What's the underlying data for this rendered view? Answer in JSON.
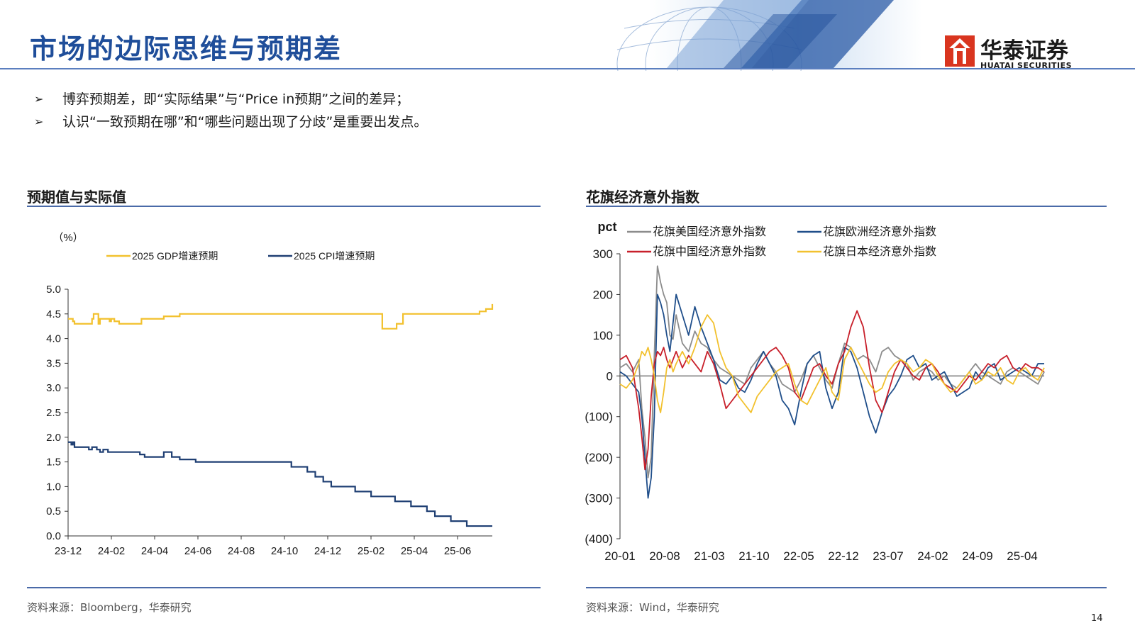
{
  "slide": {
    "title": "市场的边际思维与预期差",
    "logo_text": "华泰证券",
    "logo_sub": "HUATAI SECURITIES",
    "page_number": "14",
    "brand_color": "#1f4e9a",
    "logo_color": "#d9351f"
  },
  "bullets": [
    "博弈预期差，即“实际结果”与“Price in预期”之间的差异；",
    "认识“一致预期在哪”和“哪些问题出现了分歧”是重要出发点。"
  ],
  "left_panel": {
    "title": "预期值与实际值",
    "source": "资料来源：Bloomberg，华泰研究"
  },
  "right_panel": {
    "title": "花旗经济意外指数",
    "source": "资料来源：Wind，华泰研究"
  },
  "chart_data": [
    {
      "type": "line",
      "ylabel": "（%）",
      "ylim": [
        0,
        5
      ],
      "yticks": [
        "0.0",
        "0.5",
        "1.0",
        "1.5",
        "2.0",
        "2.5",
        "3.0",
        "3.5",
        "4.0",
        "4.5",
        "5.0"
      ],
      "x_ticks": [
        "23-12",
        "24-02",
        "24-04",
        "24-06",
        "24-08",
        "24-10",
        "24-12",
        "25-02",
        "25-04",
        "25-06"
      ],
      "series": [
        {
          "name": "2025 GDP增速预期",
          "color": "#f2c12e",
          "x": [
            0,
            2,
            3,
            4,
            6,
            8,
            10,
            14,
            15,
            16,
            19,
            20,
            22,
            25,
            26,
            27,
            29,
            31,
            32,
            34,
            36,
            40,
            42,
            44,
            46,
            48,
            50,
            60,
            70,
            80,
            90,
            100,
            110,
            120,
            130,
            140,
            150,
            160,
            170,
            180,
            190,
            196,
            197,
            201,
            203,
            204,
            206,
            210,
            215,
            225,
            230,
            235,
            240,
            245,
            250,
            255,
            258,
            262,
            264,
            266
          ],
          "values": [
            4.4,
            4.4,
            4.35,
            4.3,
            4.3,
            4.3,
            4.3,
            4.3,
            4.4,
            4.5,
            4.3,
            4.4,
            4.4,
            4.4,
            4.35,
            4.4,
            4.35,
            4.35,
            4.3,
            4.3,
            4.3,
            4.3,
            4.3,
            4.3,
            4.4,
            4.4,
            4.4,
            4.45,
            4.5,
            4.5,
            4.5,
            4.5,
            4.5,
            4.5,
            4.5,
            4.5,
            4.5,
            4.5,
            4.5,
            4.5,
            4.5,
            4.5,
            4.2,
            4.2,
            4.2,
            4.2,
            4.3,
            4.5,
            4.5,
            4.5,
            4.5,
            4.5,
            4.5,
            4.5,
            4.5,
            4.5,
            4.55,
            4.6,
            4.6,
            4.7
          ]
        },
        {
          "name": "2025 CPI增速预期",
          "color": "#1f3f73",
          "x": [
            0,
            1,
            2,
            3,
            4,
            8,
            10,
            13,
            15,
            18,
            20,
            22,
            25,
            28,
            30,
            33,
            35,
            38,
            40,
            42,
            45,
            48,
            50,
            52,
            55,
            60,
            65,
            70,
            75,
            80,
            85,
            90,
            95,
            100,
            105,
            110,
            115,
            120,
            125,
            130,
            135,
            140,
            145,
            150,
            155,
            160,
            165,
            170,
            175,
            180,
            185,
            190,
            195,
            200,
            205,
            210,
            215,
            220,
            225,
            230,
            235,
            240,
            245,
            250,
            255,
            260,
            266
          ],
          "values": [
            1.9,
            1.9,
            1.85,
            1.9,
            1.8,
            1.8,
            1.8,
            1.75,
            1.8,
            1.75,
            1.7,
            1.75,
            1.7,
            1.7,
            1.7,
            1.7,
            1.7,
            1.7,
            1.7,
            1.7,
            1.65,
            1.6,
            1.6,
            1.6,
            1.6,
            1.7,
            1.6,
            1.55,
            1.55,
            1.5,
            1.5,
            1.5,
            1.5,
            1.5,
            1.5,
            1.5,
            1.5,
            1.5,
            1.5,
            1.5,
            1.5,
            1.4,
            1.4,
            1.3,
            1.2,
            1.1,
            1.0,
            1.0,
            1.0,
            0.9,
            0.9,
            0.8,
            0.8,
            0.8,
            0.7,
            0.7,
            0.6,
            0.6,
            0.5,
            0.4,
            0.4,
            0.3,
            0.3,
            0.2,
            0.2,
            0.2,
            0.2
          ]
        }
      ]
    },
    {
      "type": "line",
      "ylabel": "pct",
      "ylim": [
        -400,
        300
      ],
      "yticks": [
        "(400)",
        "(300)",
        "(200)",
        "(100)",
        "0",
        "100",
        "200",
        "300"
      ],
      "x_ticks": [
        "20-01",
        "20-08",
        "21-03",
        "21-10",
        "22-05",
        "22-12",
        "23-07",
        "24-02",
        "24-09",
        "25-04"
      ],
      "series": [
        {
          "name": "花旗美国经济意外指数",
          "color": "#8c8c8c",
          "x": [
            0,
            1,
            2,
            3,
            3.5,
            4,
            4.5,
            5,
            5.5,
            6,
            6.5,
            7,
            7.5,
            8,
            8.5,
            9,
            10,
            11,
            12,
            13,
            14,
            15,
            16,
            17,
            18,
            19,
            20,
            21,
            22,
            23,
            24,
            25,
            26,
            27,
            28,
            29,
            30,
            31,
            32,
            33,
            34,
            35,
            36,
            37,
            38,
            39,
            40,
            41,
            42,
            43,
            44,
            45,
            46,
            47,
            48,
            49,
            50,
            51,
            52,
            53,
            54,
            55,
            56,
            57,
            58,
            59,
            60,
            61,
            62,
            63,
            64,
            65,
            66,
            67,
            68
          ],
          "values": [
            20,
            30,
            10,
            40,
            -80,
            -150,
            -250,
            -200,
            50,
            270,
            230,
            200,
            180,
            100,
            90,
            150,
            80,
            60,
            110,
            80,
            70,
            40,
            20,
            10,
            0,
            -10,
            -20,
            20,
            40,
            60,
            30,
            10,
            -20,
            -30,
            -40,
            -10,
            30,
            50,
            20,
            -10,
            -30,
            30,
            80,
            70,
            40,
            50,
            40,
            10,
            60,
            70,
            50,
            40,
            30,
            -10,
            10,
            20,
            10,
            -10,
            0,
            -20,
            -30,
            -10,
            10,
            30,
            10,
            0,
            -10,
            -20,
            10,
            20,
            10,
            0,
            -10,
            -20,
            10
          ]
        },
        {
          "name": "花旗欧洲经济意外指数",
          "color": "#1f4e8a",
          "x": [
            0,
            1,
            2,
            3,
            3.5,
            4,
            4.5,
            5,
            5.5,
            6,
            6.5,
            7,
            7.5,
            8,
            8.5,
            9,
            10,
            11,
            12,
            13,
            14,
            15,
            16,
            17,
            18,
            19,
            20,
            21,
            22,
            23,
            24,
            25,
            26,
            27,
            28,
            29,
            30,
            31,
            32,
            33,
            34,
            35,
            36,
            37,
            38,
            39,
            40,
            41,
            42,
            43,
            44,
            45,
            46,
            47,
            48,
            49,
            50,
            51,
            52,
            53,
            54,
            55,
            56,
            57,
            58,
            59,
            60,
            61,
            62,
            63,
            64,
            65,
            66,
            67,
            68
          ],
          "values": [
            10,
            0,
            -20,
            -40,
            -100,
            -200,
            -300,
            -250,
            -100,
            200,
            180,
            150,
            100,
            60,
            130,
            200,
            150,
            100,
            170,
            120,
            80,
            40,
            -10,
            -20,
            0,
            -30,
            -40,
            -10,
            30,
            60,
            30,
            0,
            -60,
            -80,
            -120,
            -40,
            30,
            50,
            60,
            -30,
            -80,
            -40,
            70,
            60,
            20,
            -40,
            -100,
            -140,
            -90,
            -50,
            -30,
            0,
            40,
            50,
            20,
            30,
            -10,
            0,
            10,
            -20,
            -50,
            -40,
            -30,
            10,
            -10,
            20,
            30,
            -10,
            0,
            10,
            20,
            10,
            0,
            30,
            30
          ]
        },
        {
          "name": "花旗中国经济意外指数",
          "color": "#c8202b",
          "x": [
            0,
            1,
            2,
            3,
            3.5,
            4,
            4.5,
            5,
            5.5,
            6,
            6.5,
            7,
            7.5,
            8,
            8.5,
            9,
            10,
            11,
            12,
            13,
            14,
            15,
            16,
            17,
            18,
            19,
            20,
            21,
            22,
            23,
            24,
            25,
            26,
            27,
            28,
            29,
            30,
            31,
            32,
            33,
            34,
            35,
            36,
            37,
            38,
            39,
            40,
            41,
            42,
            43,
            44,
            45,
            46,
            47,
            48,
            49,
            50,
            51,
            52,
            53,
            54,
            55,
            56,
            57,
            58,
            59,
            60,
            61,
            62,
            63,
            64,
            65,
            66,
            67,
            68
          ],
          "values": [
            40,
            50,
            20,
            -80,
            -150,
            -230,
            -180,
            -50,
            30,
            60,
            50,
            70,
            40,
            20,
            40,
            60,
            20,
            50,
            30,
            10,
            60,
            30,
            -20,
            -80,
            -60,
            -40,
            -20,
            0,
            20,
            40,
            60,
            70,
            50,
            20,
            -40,
            -60,
            -20,
            20,
            30,
            0,
            -20,
            30,
            60,
            120,
            160,
            120,
            20,
            -60,
            -90,
            -40,
            10,
            40,
            20,
            0,
            -10,
            20,
            30,
            10,
            -20,
            -30,
            -40,
            -20,
            0,
            -10,
            10,
            30,
            20,
            40,
            50,
            20,
            10,
            30,
            20,
            20,
            10
          ]
        },
        {
          "name": "花旗日本经济意外指数",
          "color": "#f2c12e",
          "x": [
            0,
            1,
            2,
            3,
            3.5,
            4,
            4.5,
            5,
            5.5,
            6,
            6.5,
            7,
            7.5,
            8,
            8.5,
            9,
            10,
            11,
            12,
            13,
            14,
            15,
            16,
            17,
            18,
            19,
            20,
            21,
            22,
            23,
            24,
            25,
            26,
            27,
            28,
            29,
            30,
            31,
            32,
            33,
            34,
            35,
            36,
            37,
            38,
            39,
            40,
            41,
            42,
            43,
            44,
            45,
            46,
            47,
            48,
            49,
            50,
            51,
            52,
            53,
            54,
            55,
            56,
            57,
            58,
            59,
            60,
            61,
            62,
            63,
            64,
            65,
            66,
            67,
            68
          ],
          "values": [
            -20,
            -30,
            -10,
            30,
            60,
            50,
            70,
            40,
            0,
            -60,
            -90,
            -40,
            20,
            40,
            10,
            30,
            60,
            30,
            70,
            120,
            150,
            130,
            60,
            20,
            0,
            -50,
            -70,
            -90,
            -50,
            -30,
            -10,
            10,
            20,
            30,
            -20,
            -60,
            -70,
            -40,
            -10,
            20,
            -40,
            -60,
            40,
            70,
            40,
            10,
            -20,
            -40,
            -30,
            10,
            30,
            40,
            30,
            10,
            20,
            40,
            30,
            0,
            -20,
            -40,
            -30,
            -10,
            10,
            -20,
            -10,
            10,
            0,
            20,
            -10,
            -20,
            10,
            20,
            0,
            -10,
            20
          ]
        }
      ]
    }
  ]
}
